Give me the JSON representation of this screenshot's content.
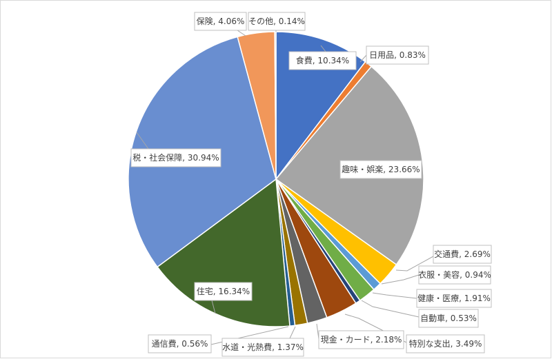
{
  "chart_data": {
    "type": "pie",
    "title": "",
    "start_angle_deg": 0,
    "direction": "clockwise",
    "legend": "none",
    "slices": [
      {
        "name": "食費",
        "value": 10.34,
        "label": "食費, 10.34%",
        "color": "#4472c4"
      },
      {
        "name": "日用品",
        "value": 0.83,
        "label": "日用品, 0.83%",
        "color": "#ed7d31"
      },
      {
        "name": "趣味・娯楽",
        "value": 23.66,
        "label": "趣味・娯楽, 23.66%",
        "color": "#a5a5a5"
      },
      {
        "name": "交通費",
        "value": 2.69,
        "label": "交通費, 2.69%",
        "color": "#ffc000"
      },
      {
        "name": "衣服・美容",
        "value": 0.94,
        "label": "衣服・美容, 0.94%",
        "color": "#5b9bd5"
      },
      {
        "name": "健康・医療",
        "value": 1.91,
        "label": "健康・医療, 1.91%",
        "color": "#70ad47"
      },
      {
        "name": "自動車",
        "value": 0.53,
        "label": "自動車, 0.53%",
        "color": "#264478"
      },
      {
        "name": "特別な支出",
        "value": 3.49,
        "label": "特別な支出, 3.49%",
        "color": "#9e480e"
      },
      {
        "name": "現金・カード",
        "value": 2.18,
        "label": "現金・カード, 2.18%",
        "color": "#636363"
      },
      {
        "name": "水道・光熱費",
        "value": 1.37,
        "label": "水道・光熱費, 1.37%",
        "color": "#997300"
      },
      {
        "name": "通信費",
        "value": 0.56,
        "label": "通信費, 0.56%",
        "color": "#255e91"
      },
      {
        "name": "住宅",
        "value": 16.34,
        "label": "住宅, 16.34%",
        "color": "#43682b"
      },
      {
        "name": "税・社会保障",
        "value": 30.94,
        "label": "税・社会保障, 30.94%",
        "color": "#698ed0"
      },
      {
        "name": "保険",
        "value": 4.06,
        "label": "保険, 4.06%",
        "color": "#f1975a"
      },
      {
        "name": "その他",
        "value": 0.14,
        "label": "その他, 0.14%",
        "color": "#b7b7b7"
      }
    ]
  }
}
